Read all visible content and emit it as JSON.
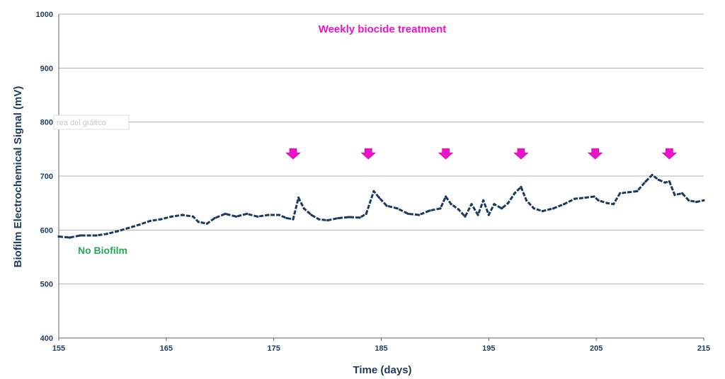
{
  "chart_data": {
    "type": "line",
    "title": "",
    "xlabel": "Time (days)",
    "ylabel": "Biofilm Electrochemical Signal (mV)",
    "xlim": [
      155,
      215
    ],
    "ylim": [
      400,
      1000
    ],
    "xticks": [
      155,
      165,
      175,
      185,
      195,
      205,
      215
    ],
    "yticks": [
      400,
      500,
      600,
      700,
      800,
      900,
      1000
    ],
    "grid": true,
    "annotations": {
      "treatment_label": "Weekly biocide treatment",
      "baseline_label": "No Biofilm",
      "ghost_label": "rea del gráfico"
    },
    "treatment_days": [
      176.8,
      183.8,
      191.0,
      198.0,
      204.9,
      211.8
    ],
    "series": [
      {
        "color": "#1b3a5e",
        "points": [
          [
            155.0,
            588
          ],
          [
            156.0,
            586
          ],
          [
            157.0,
            590
          ],
          [
            158.5,
            590
          ],
          [
            159.5,
            593
          ],
          [
            160.5,
            598
          ],
          [
            161.5,
            604
          ],
          [
            162.5,
            610
          ],
          [
            163.5,
            617
          ],
          [
            164.5,
            620
          ],
          [
            165.5,
            625
          ],
          [
            166.5,
            628
          ],
          [
            167.5,
            625
          ],
          [
            168.0,
            615
          ],
          [
            168.8,
            612
          ],
          [
            169.5,
            622
          ],
          [
            170.5,
            630
          ],
          [
            171.5,
            625
          ],
          [
            172.5,
            630
          ],
          [
            173.5,
            625
          ],
          [
            174.5,
            628
          ],
          [
            175.5,
            628
          ],
          [
            176.2,
            622
          ],
          [
            176.8,
            620
          ],
          [
            177.3,
            660
          ],
          [
            177.8,
            640
          ],
          [
            178.5,
            628
          ],
          [
            179.2,
            620
          ],
          [
            180.0,
            618
          ],
          [
            181.0,
            622
          ],
          [
            182.0,
            624
          ],
          [
            183.0,
            623
          ],
          [
            183.6,
            630
          ],
          [
            184.3,
            672
          ],
          [
            184.8,
            660
          ],
          [
            185.5,
            645
          ],
          [
            186.5,
            640
          ],
          [
            187.5,
            630
          ],
          [
            188.5,
            628
          ],
          [
            189.5,
            636
          ],
          [
            190.5,
            640
          ],
          [
            191.0,
            662
          ],
          [
            191.5,
            648
          ],
          [
            192.2,
            638
          ],
          [
            192.8,
            625
          ],
          [
            193.4,
            648
          ],
          [
            194.0,
            628
          ],
          [
            194.5,
            655
          ],
          [
            195.0,
            628
          ],
          [
            195.5,
            648
          ],
          [
            196.2,
            640
          ],
          [
            196.8,
            650
          ],
          [
            197.4,
            668
          ],
          [
            198.0,
            680
          ],
          [
            198.5,
            655
          ],
          [
            199.2,
            640
          ],
          [
            200.0,
            635
          ],
          [
            201.0,
            640
          ],
          [
            202.0,
            648
          ],
          [
            203.0,
            658
          ],
          [
            204.0,
            660
          ],
          [
            204.8,
            662
          ],
          [
            205.2,
            655
          ],
          [
            206.0,
            650
          ],
          [
            206.6,
            648
          ],
          [
            207.2,
            668
          ],
          [
            208.0,
            670
          ],
          [
            208.8,
            672
          ],
          [
            209.6,
            690
          ],
          [
            210.2,
            702
          ],
          [
            210.8,
            693
          ],
          [
            211.4,
            688
          ],
          [
            211.8,
            690
          ],
          [
            212.3,
            665
          ],
          [
            213.0,
            668
          ],
          [
            213.6,
            655
          ],
          [
            214.3,
            652
          ],
          [
            215.0,
            655
          ]
        ]
      }
    ]
  }
}
